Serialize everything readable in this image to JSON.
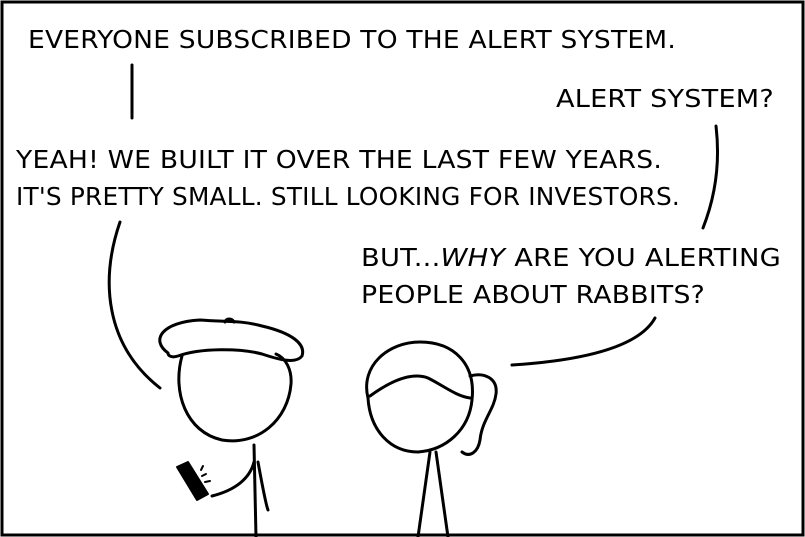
{
  "dialogue": {
    "line_1": "EVERYONE SUBSCRIBED TO THE ALERT SYSTEM.",
    "line_2": "ALERT SYSTEM?",
    "line_3a": "YEAH!  WE BUILT IT OVER THE LAST FEW YEARS.",
    "line_3b": "IT'S PRETTY SMALL. STILL LOOKING FOR INVESTORS.",
    "line_4a_pre": "BUT...",
    "line_4a_em": "WHY",
    "line_4a_post": " ARE YOU ALERTING",
    "line_4b": "PEOPLE ABOUT RABBITS?"
  }
}
